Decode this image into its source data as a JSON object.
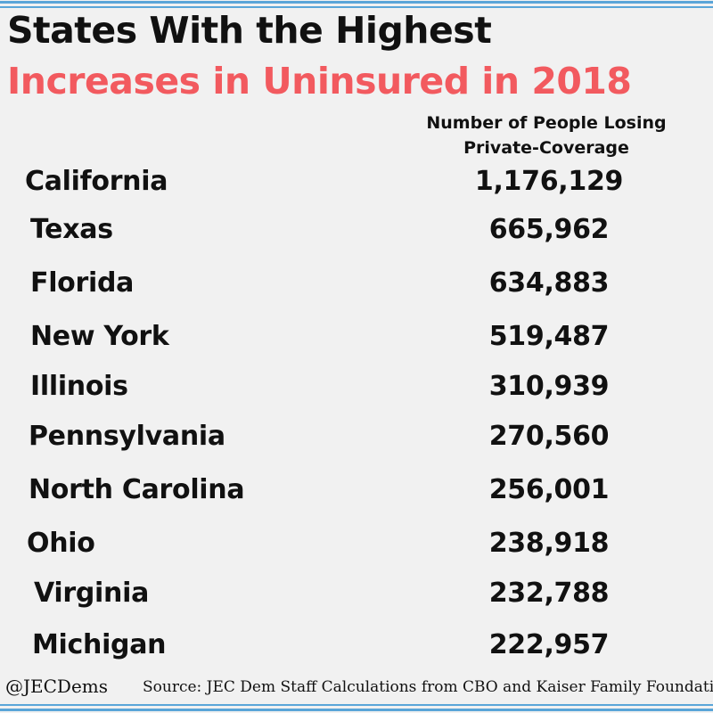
{
  "title": {
    "line1": "States With the Highest",
    "line2": "Increases in Uninsured in 2018"
  },
  "column_header": {
    "line1": "Number of People Losing",
    "line2": "Private-Coverage"
  },
  "footer": {
    "handle": "@JECDems",
    "source": "Source: JEC Dem Staff Calculations from CBO and Kaiser Family Foundation"
  },
  "colors": {
    "background": "#f1f1f1",
    "title_primary": "#111111",
    "title_accent": "#f25a5f",
    "border_accent": "#5aa5d8"
  },
  "chart_data": {
    "type": "table",
    "columns": [
      "",
      "Number of People Losing Private-Coverage"
    ],
    "categories": [
      "California",
      "Texas",
      "Florida",
      "New York",
      "Illinois",
      "Pennsylvania",
      "North Carolina",
      "Ohio",
      "Virginia",
      "Michigan"
    ],
    "values": [
      1176129,
      665962,
      634883,
      519487,
      310939,
      270560,
      256001,
      238918,
      232788,
      222957
    ],
    "value_labels": [
      "1,176,129",
      "665,962",
      "634,883",
      "519,487",
      "310,939",
      "270,560",
      "256,001",
      "238,918",
      "232,788",
      "222,957"
    ]
  }
}
